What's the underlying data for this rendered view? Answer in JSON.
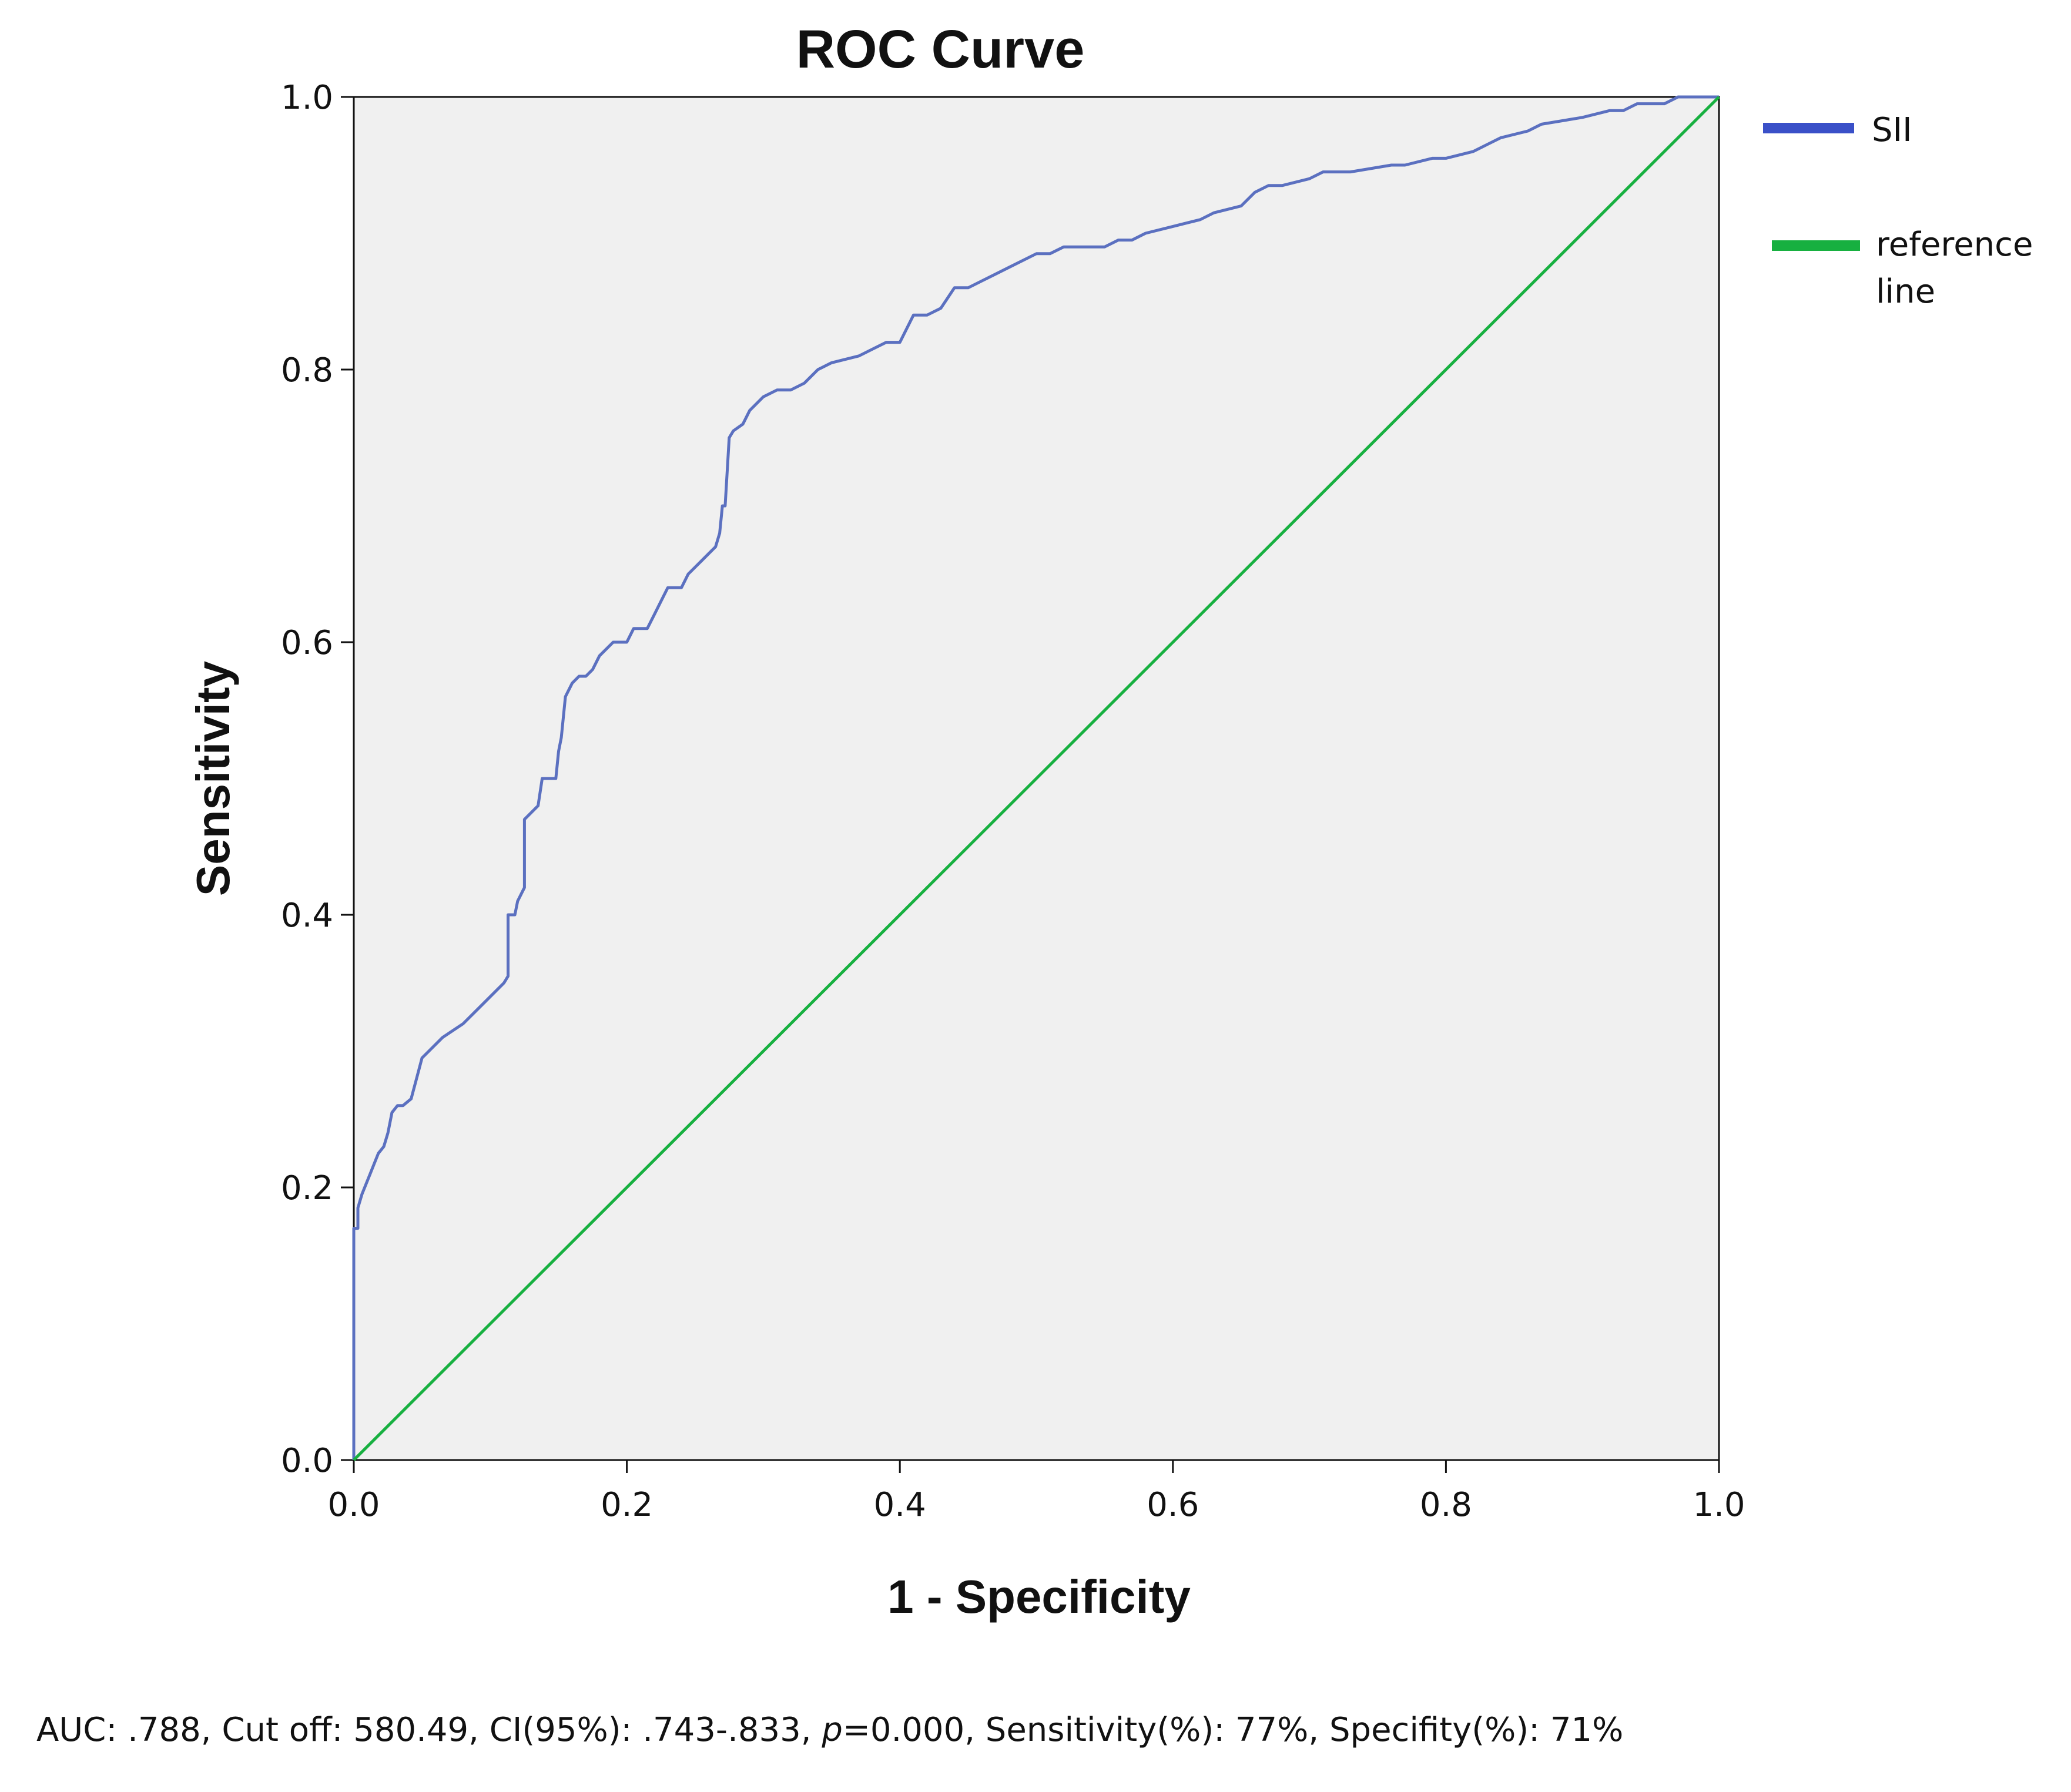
{
  "chart_data": {
    "type": "line",
    "title": "ROC Curve",
    "xlabel": "1 - Specificity",
    "ylabel": "Sensitivity",
    "xlim": [
      0,
      1
    ],
    "ylim": [
      0,
      1
    ],
    "x_ticks": [
      "0.0",
      "0.2",
      "0.4",
      "0.6",
      "0.8",
      "1.0"
    ],
    "y_ticks": [
      "0.0",
      "0.2",
      "0.4",
      "0.6",
      "0.8",
      "1.0"
    ],
    "legend": {
      "position": "right",
      "entries": [
        {
          "label": "SII",
          "color": "#3a50c8"
        },
        {
          "label": "reference line",
          "color": "#17b040"
        }
      ]
    },
    "series": [
      {
        "name": "SII",
        "color": "#5b70c0",
        "x": [
          0.0,
          0.0,
          0.003,
          0.003,
          0.006,
          0.012,
          0.018,
          0.022,
          0.025,
          0.028,
          0.032,
          0.036,
          0.042,
          0.046,
          0.05,
          0.055,
          0.065,
          0.08,
          0.095,
          0.11,
          0.113,
          0.113,
          0.118,
          0.12,
          0.125,
          0.125,
          0.13,
          0.135,
          0.138,
          0.142,
          0.148,
          0.15,
          0.152,
          0.155,
          0.16,
          0.165,
          0.17,
          0.175,
          0.18,
          0.19,
          0.2,
          0.205,
          0.21,
          0.215,
          0.22,
          0.225,
          0.23,
          0.24,
          0.245,
          0.25,
          0.255,
          0.26,
          0.265,
          0.268,
          0.27,
          0.272,
          0.275,
          0.278,
          0.285,
          0.29,
          0.295,
          0.3,
          0.31,
          0.32,
          0.33,
          0.34,
          0.35,
          0.37,
          0.38,
          0.39,
          0.4,
          0.41,
          0.42,
          0.43,
          0.44,
          0.45,
          0.46,
          0.47,
          0.48,
          0.5,
          0.51,
          0.52,
          0.53,
          0.55,
          0.56,
          0.57,
          0.58,
          0.6,
          0.62,
          0.63,
          0.65,
          0.66,
          0.67,
          0.68,
          0.7,
          0.71,
          0.73,
          0.76,
          0.77,
          0.79,
          0.8,
          0.82,
          0.83,
          0.84,
          0.86,
          0.87,
          0.9,
          0.92,
          0.93,
          0.94,
          0.96,
          0.97,
          1.0
        ],
        "y": [
          0.0,
          0.17,
          0.17,
          0.185,
          0.195,
          0.21,
          0.225,
          0.23,
          0.24,
          0.255,
          0.26,
          0.26,
          0.265,
          0.28,
          0.295,
          0.3,
          0.31,
          0.32,
          0.335,
          0.35,
          0.355,
          0.4,
          0.4,
          0.41,
          0.42,
          0.47,
          0.475,
          0.48,
          0.5,
          0.5,
          0.5,
          0.52,
          0.53,
          0.56,
          0.57,
          0.575,
          0.575,
          0.58,
          0.59,
          0.6,
          0.6,
          0.61,
          0.61,
          0.61,
          0.62,
          0.63,
          0.64,
          0.64,
          0.65,
          0.655,
          0.66,
          0.665,
          0.67,
          0.68,
          0.7,
          0.7,
          0.75,
          0.755,
          0.76,
          0.77,
          0.775,
          0.78,
          0.785,
          0.785,
          0.79,
          0.8,
          0.805,
          0.81,
          0.815,
          0.82,
          0.82,
          0.84,
          0.84,
          0.845,
          0.86,
          0.86,
          0.865,
          0.87,
          0.875,
          0.885,
          0.885,
          0.89,
          0.89,
          0.89,
          0.895,
          0.895,
          0.9,
          0.905,
          0.91,
          0.915,
          0.92,
          0.93,
          0.935,
          0.935,
          0.94,
          0.945,
          0.945,
          0.95,
          0.95,
          0.955,
          0.955,
          0.96,
          0.965,
          0.97,
          0.975,
          0.98,
          0.985,
          0.99,
          0.99,
          0.995,
          0.995,
          1.0,
          1.0
        ]
      },
      {
        "name": "reference line",
        "color": "#17b040",
        "x": [
          0,
          1
        ],
        "y": [
          0,
          1
        ]
      }
    ]
  },
  "footnote": {
    "prefix": "AUC: .788, Cut off: 580.49, CI(95%): .743-.833, ",
    "p_symbol": "p",
    "suffix": "=0.000, Sensitivity(%): 77%, Specifity(%): 71%"
  }
}
